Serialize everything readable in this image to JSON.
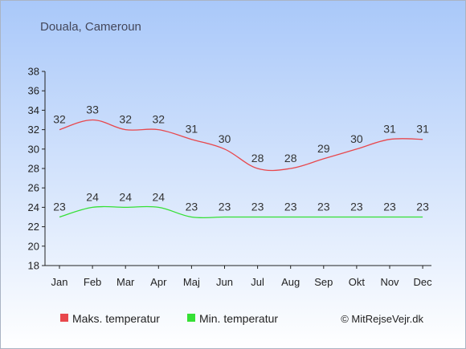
{
  "chart_data": {
    "type": "line",
    "title": "Douala, Cameroun",
    "categories": [
      "Jan",
      "Feb",
      "Mar",
      "Apr",
      "Maj",
      "Jun",
      "Jul",
      "Aug",
      "Sep",
      "Okt",
      "Nov",
      "Dec"
    ],
    "series": [
      {
        "name": "Maks. temperatur",
        "color": "#e8474c",
        "values": [
          32,
          33,
          32,
          32,
          31,
          30,
          28,
          28,
          29,
          30,
          31,
          31
        ]
      },
      {
        "name": "Min. temperatur",
        "color": "#35e035",
        "values": [
          23,
          24,
          24,
          24,
          23,
          23,
          23,
          23,
          23,
          23,
          23,
          23
        ]
      }
    ],
    "ylim": [
      18,
      38
    ],
    "yticks": [
      18,
      20,
      22,
      24,
      26,
      28,
      30,
      32,
      34,
      36,
      38
    ],
    "xlabel": "",
    "ylabel": "",
    "grid": false,
    "legend": "bottom",
    "background_top": "#a9c8f9",
    "background_bottom": "#ffffff"
  },
  "copyright": "© MitRejseVejr.dk"
}
